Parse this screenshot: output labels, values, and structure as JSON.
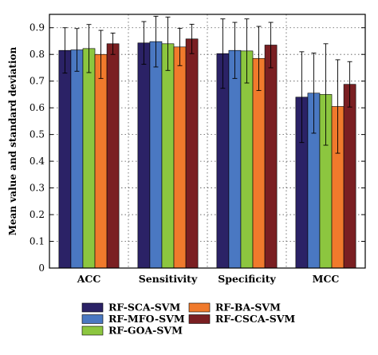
{
  "chart_data": {
    "type": "bar",
    "ylabel": "Mean value and standard deviation",
    "xlabel": "",
    "ylim": [
      0,
      0.95
    ],
    "yticks": [
      "0",
      "0.1",
      "0.2",
      "0.3",
      "0.4",
      "0.5",
      "0.6",
      "0.7",
      "0.8",
      "0.9"
    ],
    "categories": [
      "ACC",
      "Sensitivity",
      "Specificity",
      "MCC"
    ],
    "grid": true,
    "legend_position": "bottom",
    "error_bars": true,
    "series": [
      {
        "name": "RF-SCA-SVM",
        "color": "#2b2266",
        "values": [
          0.815,
          0.843,
          0.803,
          0.64
        ],
        "errors": [
          0.085,
          0.08,
          0.13,
          0.17
        ]
      },
      {
        "name": "RF-MFO-SVM",
        "color": "#4a78c2",
        "values": [
          0.817,
          0.848,
          0.815,
          0.655
        ],
        "errors": [
          0.08,
          0.095,
          0.105,
          0.15
        ]
      },
      {
        "name": "RF-GOA-SVM",
        "color": "#8cc63f",
        "values": [
          0.822,
          0.84,
          0.813,
          0.65
        ],
        "errors": [
          0.09,
          0.1,
          0.12,
          0.19
        ]
      },
      {
        "name": "RF-BA-SVM",
        "color": "#f07a2c",
        "values": [
          0.8,
          0.828,
          0.785,
          0.605
        ],
        "errors": [
          0.09,
          0.07,
          0.12,
          0.175
        ]
      },
      {
        "name": "RF-CSCA-SVM",
        "color": "#7a1f22",
        "values": [
          0.84,
          0.858,
          0.835,
          0.688
        ],
        "errors": [
          0.04,
          0.055,
          0.085,
          0.085
        ]
      }
    ]
  }
}
